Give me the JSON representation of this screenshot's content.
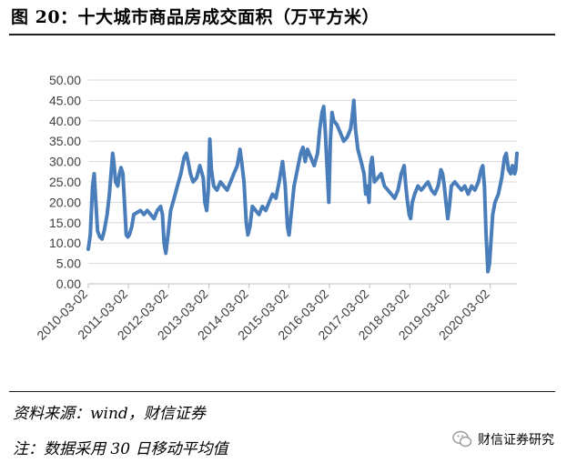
{
  "title": "图 20：十大城市商品房成交面积（万平方米）",
  "source_note": "资料来源：wind，财信证券",
  "method_note": "注：数据采用 30 日移动平均值",
  "watermark": "财信证券研究",
  "watermark_icon": "wechat-icon",
  "colors": {
    "series": "#4a7ebb",
    "grid": "#d9d9d9",
    "axis": "#d9d9d9",
    "text": "#404040"
  },
  "chart_data": {
    "type": "line",
    "title": "",
    "xlabel": "",
    "ylabel": "",
    "ylim": [
      0,
      50
    ],
    "y_ticks": [
      "0.00",
      "5.00",
      "10.00",
      "15.00",
      "20.00",
      "25.00",
      "30.00",
      "35.00",
      "40.00",
      "45.00",
      "50.00"
    ],
    "x_tick_labels": [
      "2010-03-02",
      "2011-03-02",
      "2012-03-02",
      "2013-03-02",
      "2014-03-02",
      "2015-03-02",
      "2016-03-02",
      "2017-03-02",
      "2018-03-02",
      "2019-03-02",
      "2020-03-02"
    ],
    "x_range": [
      "2010-03-02",
      "2020-10-31"
    ],
    "grid": "horizontal",
    "legend": "none",
    "series": [
      {
        "values": [
          [
            "2010-03-02",
            8.5
          ],
          [
            "2010-03-20",
            12
          ],
          [
            "2010-04-10",
            24
          ],
          [
            "2010-04-25",
            27
          ],
          [
            "2010-05-10",
            20
          ],
          [
            "2010-05-25",
            13
          ],
          [
            "2010-06-15",
            11.5
          ],
          [
            "2010-07-05",
            11
          ],
          [
            "2010-07-25",
            13
          ],
          [
            "2010-08-20",
            17
          ],
          [
            "2010-09-10",
            22
          ],
          [
            "2010-09-25",
            27
          ],
          [
            "2010-10-10",
            32
          ],
          [
            "2010-10-20",
            30
          ],
          [
            "2010-11-05",
            25
          ],
          [
            "2010-11-25",
            24
          ],
          [
            "2010-12-10",
            27
          ],
          [
            "2010-12-25",
            28.5
          ],
          [
            "2011-01-10",
            27
          ],
          [
            "2011-01-25",
            20
          ],
          [
            "2011-02-10",
            12
          ],
          [
            "2011-02-25",
            11.5
          ],
          [
            "2011-03-10",
            12
          ],
          [
            "2011-04-01",
            14
          ],
          [
            "2011-04-20",
            17
          ],
          [
            "2011-05-20",
            17.5
          ],
          [
            "2011-06-20",
            18
          ],
          [
            "2011-07-20",
            17
          ],
          [
            "2011-08-20",
            18
          ],
          [
            "2011-09-20",
            17
          ],
          [
            "2011-10-20",
            16
          ],
          [
            "2011-11-20",
            18
          ],
          [
            "2011-12-20",
            19
          ],
          [
            "2012-01-05",
            17
          ],
          [
            "2012-01-20",
            10
          ],
          [
            "2012-02-05",
            7.5
          ],
          [
            "2012-02-25",
            12
          ],
          [
            "2012-03-20",
            18
          ],
          [
            "2012-04-20",
            21
          ],
          [
            "2012-05-20",
            24
          ],
          [
            "2012-06-20",
            27
          ],
          [
            "2012-07-20",
            31
          ],
          [
            "2012-08-10",
            32
          ],
          [
            "2012-08-25",
            30
          ],
          [
            "2012-09-15",
            27
          ],
          [
            "2012-10-10",
            25
          ],
          [
            "2012-11-10",
            26
          ],
          [
            "2012-12-10",
            29
          ],
          [
            "2013-01-10",
            26
          ],
          [
            "2013-01-25",
            20
          ],
          [
            "2013-02-10",
            18
          ],
          [
            "2013-02-25",
            23
          ],
          [
            "2013-03-10",
            35.5
          ],
          [
            "2013-03-25",
            28
          ],
          [
            "2013-04-15",
            24
          ],
          [
            "2013-05-15",
            23
          ],
          [
            "2013-06-15",
            25
          ],
          [
            "2013-07-15",
            24
          ],
          [
            "2013-08-15",
            23
          ],
          [
            "2013-09-15",
            25
          ],
          [
            "2013-10-15",
            27
          ],
          [
            "2013-11-15",
            29
          ],
          [
            "2013-12-10",
            33
          ],
          [
            "2013-12-25",
            30
          ],
          [
            "2014-01-15",
            25
          ],
          [
            "2014-02-05",
            15
          ],
          [
            "2014-02-20",
            12
          ],
          [
            "2014-03-10",
            14
          ],
          [
            "2014-04-01",
            19
          ],
          [
            "2014-05-01",
            18
          ],
          [
            "2014-06-01",
            17
          ],
          [
            "2014-07-01",
            19
          ],
          [
            "2014-08-01",
            18
          ],
          [
            "2014-09-01",
            20
          ],
          [
            "2014-10-01",
            22
          ],
          [
            "2014-11-01",
            21
          ],
          [
            "2014-12-01",
            25
          ],
          [
            "2015-01-01",
            30
          ],
          [
            "2015-01-25",
            24
          ],
          [
            "2015-02-15",
            14
          ],
          [
            "2015-03-01",
            12
          ],
          [
            "2015-03-20",
            17
          ],
          [
            "2015-04-15",
            24
          ],
          [
            "2015-05-15",
            28
          ],
          [
            "2015-06-15",
            32
          ],
          [
            "2015-07-05",
            33.5
          ],
          [
            "2015-07-25",
            30
          ],
          [
            "2015-08-15",
            33
          ],
          [
            "2015-09-15",
            31
          ],
          [
            "2015-10-15",
            29
          ],
          [
            "2015-11-15",
            32
          ],
          [
            "2015-12-05",
            38
          ],
          [
            "2015-12-25",
            42
          ],
          [
            "2016-01-10",
            43.5
          ],
          [
            "2016-01-25",
            37
          ],
          [
            "2016-02-10",
            28
          ],
          [
            "2016-02-25",
            20
          ],
          [
            "2016-03-10",
            35
          ],
          [
            "2016-03-25",
            42
          ],
          [
            "2016-04-10",
            40
          ],
          [
            "2016-05-10",
            39
          ],
          [
            "2016-06-10",
            37
          ],
          [
            "2016-07-10",
            35
          ],
          [
            "2016-08-10",
            36
          ],
          [
            "2016-09-10",
            38
          ],
          [
            "2016-09-25",
            41
          ],
          [
            "2016-10-10",
            45
          ],
          [
            "2016-10-25",
            38
          ],
          [
            "2016-11-15",
            33
          ],
          [
            "2016-12-15",
            30
          ],
          [
            "2017-01-10",
            27
          ],
          [
            "2017-01-25",
            22
          ],
          [
            "2017-02-10",
            24
          ],
          [
            "2017-02-25",
            20
          ],
          [
            "2017-03-10",
            29
          ],
          [
            "2017-03-25",
            31
          ],
          [
            "2017-04-15",
            25
          ],
          [
            "2017-05-15",
            26
          ],
          [
            "2017-06-15",
            27
          ],
          [
            "2017-07-15",
            24
          ],
          [
            "2017-08-15",
            23
          ],
          [
            "2017-09-15",
            22
          ],
          [
            "2017-10-15",
            21
          ],
          [
            "2017-11-15",
            23
          ],
          [
            "2017-12-15",
            27
          ],
          [
            "2018-01-10",
            29
          ],
          [
            "2018-01-25",
            24
          ],
          [
            "2018-02-10",
            20
          ],
          [
            "2018-02-25",
            17
          ],
          [
            "2018-03-10",
            16
          ],
          [
            "2018-03-25",
            20
          ],
          [
            "2018-04-15",
            22
          ],
          [
            "2018-05-15",
            24
          ],
          [
            "2018-06-15",
            23
          ],
          [
            "2018-07-15",
            24
          ],
          [
            "2018-08-15",
            25
          ],
          [
            "2018-09-15",
            23
          ],
          [
            "2018-10-15",
            22
          ],
          [
            "2018-11-15",
            24
          ],
          [
            "2018-12-10",
            28
          ],
          [
            "2018-12-25",
            27
          ],
          [
            "2019-01-10",
            24
          ],
          [
            "2019-01-25",
            20
          ],
          [
            "2019-02-10",
            16
          ],
          [
            "2019-02-25",
            19
          ],
          [
            "2019-03-15",
            24
          ],
          [
            "2019-04-15",
            25
          ],
          [
            "2019-05-15",
            24
          ],
          [
            "2019-06-15",
            23
          ],
          [
            "2019-07-15",
            24
          ],
          [
            "2019-08-15",
            22
          ],
          [
            "2019-09-15",
            24
          ],
          [
            "2019-10-15",
            23
          ],
          [
            "2019-11-15",
            25
          ],
          [
            "2019-12-10",
            28
          ],
          [
            "2019-12-25",
            29
          ],
          [
            "2020-01-10",
            24
          ],
          [
            "2020-01-25",
            12
          ],
          [
            "2020-02-10",
            3
          ],
          [
            "2020-02-25",
            5
          ],
          [
            "2020-03-10",
            11
          ],
          [
            "2020-03-25",
            17
          ],
          [
            "2020-04-15",
            20
          ],
          [
            "2020-05-15",
            22
          ],
          [
            "2020-06-15",
            26
          ],
          [
            "2020-07-10",
            31
          ],
          [
            "2020-07-25",
            32
          ],
          [
            "2020-08-15",
            28
          ],
          [
            "2020-09-05",
            27
          ],
          [
            "2020-09-20",
            29
          ],
          [
            "2020-10-10",
            27
          ],
          [
            "2020-10-20",
            28
          ],
          [
            "2020-10-31",
            32
          ]
        ]
      }
    ]
  }
}
